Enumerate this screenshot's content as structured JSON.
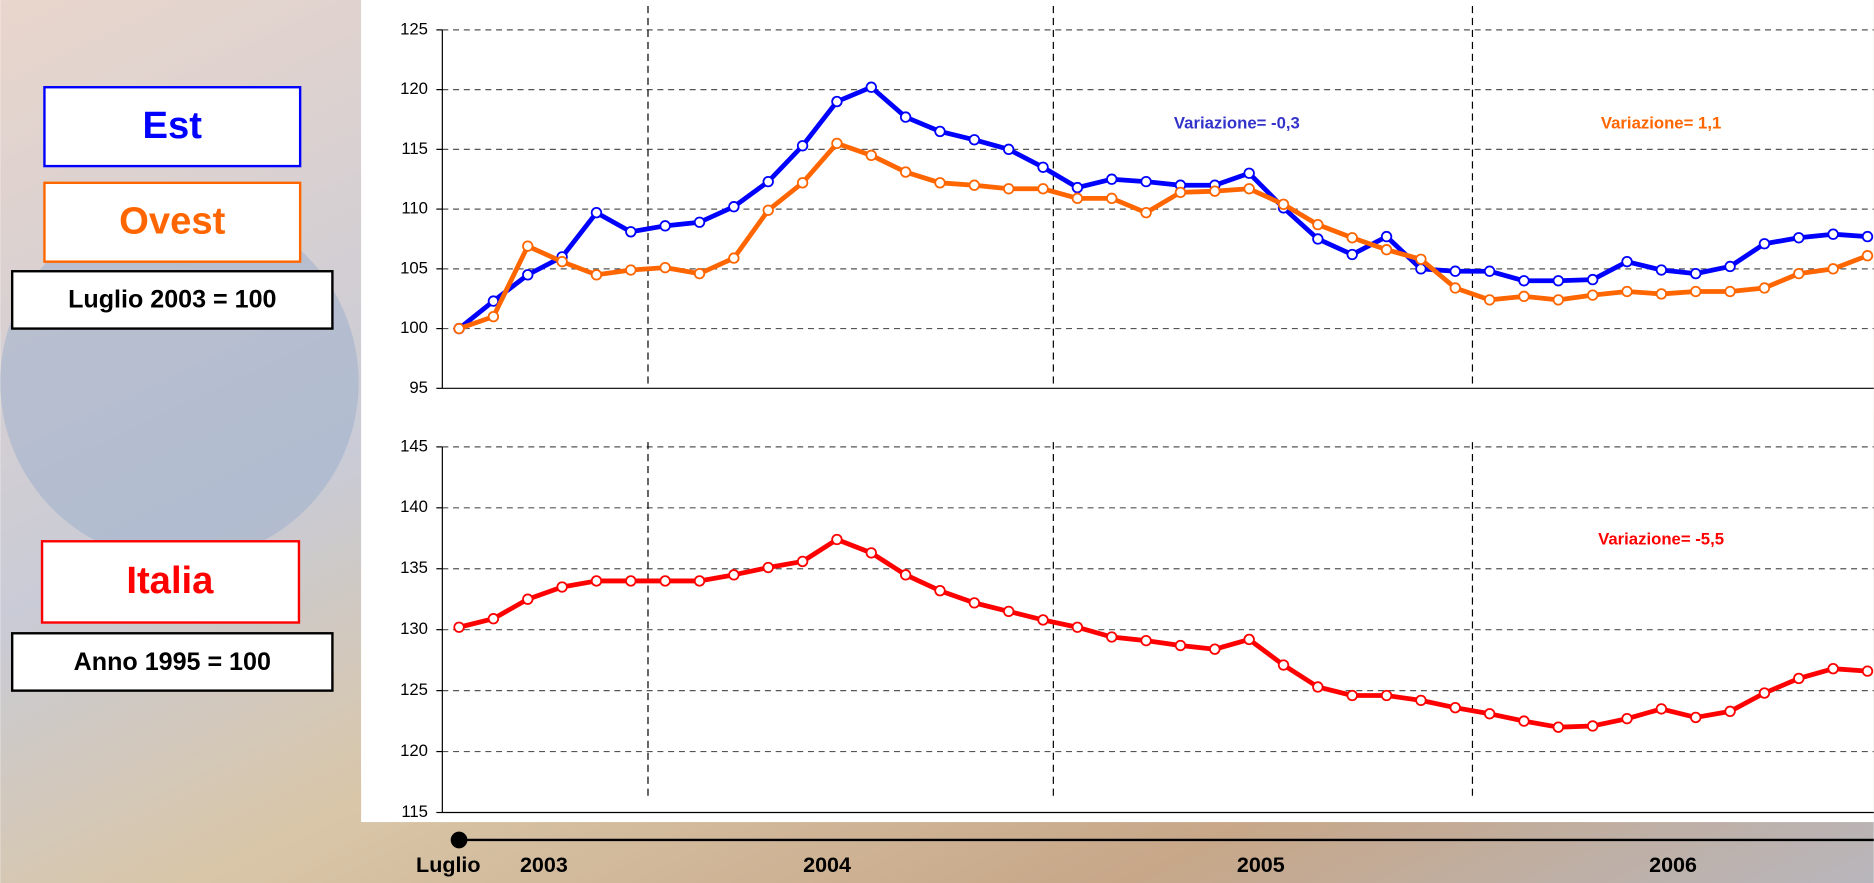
{
  "chart_data": [
    {
      "type": "line",
      "note": "Luglio 2003 = 100",
      "x": [
        null,
        null,
        null,
        null,
        null,
        null,
        null,
        null,
        null,
        null,
        null,
        null,
        null,
        null,
        null,
        null,
        null,
        null,
        null,
        null,
        null,
        null,
        null,
        null,
        null,
        null,
        null,
        null,
        null,
        null,
        null,
        null,
        null,
        null,
        null,
        null,
        null,
        null,
        null,
        null,
        null,
        null
      ],
      "series": [
        {
          "name": "Est",
          "color": "#0000ff",
          "values": [
            100,
            102.3,
            104.5,
            106,
            109.7,
            108.1,
            108.6,
            108.9,
            110.2,
            112.3,
            115.3,
            119,
            120.2,
            117.7,
            116.5,
            115.8,
            115,
            113.5,
            111.8,
            112.5,
            112.3,
            112,
            112,
            113,
            110.1,
            107.5,
            106.2,
            107.7,
            105,
            104.8,
            104.8,
            104,
            104,
            104.1,
            105.6,
            104.9,
            104.6,
            105.2,
            107.1,
            107.6,
            107.9,
            107.7
          ]
        },
        {
          "name": "Ovest",
          "color": "#ff6600",
          "values": [
            100,
            101,
            106.9,
            105.6,
            104.5,
            104.9,
            105.1,
            104.6,
            105.9,
            109.9,
            112.2,
            115.5,
            114.5,
            113.1,
            112.2,
            112,
            111.7,
            111.7,
            110.9,
            110.9,
            109.7,
            111.4,
            111.5,
            111.7,
            110.4,
            108.7,
            107.6,
            106.6,
            105.8,
            103.4,
            102.4,
            102.7,
            102.4,
            102.8,
            103.1,
            102.9,
            103.1,
            103.1,
            103.4,
            104.6,
            105,
            106.1
          ]
        }
      ],
      "annotations": [
        {
          "text": "Variazione= -0,3",
          "color": "#3333cc"
        },
        {
          "text": "Variazione= 1,1",
          "color": "#ff6600"
        }
      ],
      "ylim": [
        95,
        125
      ],
      "yticks": [
        95,
        100,
        105,
        110,
        115,
        120,
        125
      ],
      "grid": true
    },
    {
      "type": "line",
      "note": "Anno 1995 = 100",
      "x": [
        null,
        null,
        null,
        null,
        null,
        null,
        null,
        null,
        null,
        null,
        null,
        null,
        null,
        null,
        null,
        null,
        null,
        null,
        null,
        null,
        null,
        null,
        null,
        null,
        null,
        null,
        null,
        null,
        null,
        null,
        null,
        null,
        null,
        null,
        null,
        null,
        null,
        null,
        null,
        null,
        null,
        null
      ],
      "series": [
        {
          "name": "Italia",
          "color": "#ff0000",
          "values": [
            130.2,
            130.9,
            132.5,
            133.5,
            134,
            134,
            134,
            134,
            134.5,
            135.1,
            135.6,
            137.4,
            136.3,
            134.5,
            133.2,
            132.2,
            131.5,
            130.8,
            130.2,
            129.4,
            129.1,
            128.7,
            128.4,
            129.2,
            127.1,
            125.3,
            124.6,
            124.6,
            124.2,
            123.6,
            123.1,
            122.5,
            122,
            122.1,
            122.7,
            123.5,
            122.8,
            123.3,
            124.8,
            126,
            126.8,
            126.6
          ]
        }
      ],
      "annotations": [
        {
          "text": "Variazione= -5,5",
          "color": "#ff0000"
        }
      ],
      "ylim": [
        115,
        145
      ],
      "yticks": [
        115,
        120,
        125,
        130,
        135,
        140,
        145
      ],
      "grid": true
    }
  ],
  "timeline": {
    "labels": [
      "Luglio",
      "2003",
      "2004",
      "2005",
      "2006"
    ]
  }
}
